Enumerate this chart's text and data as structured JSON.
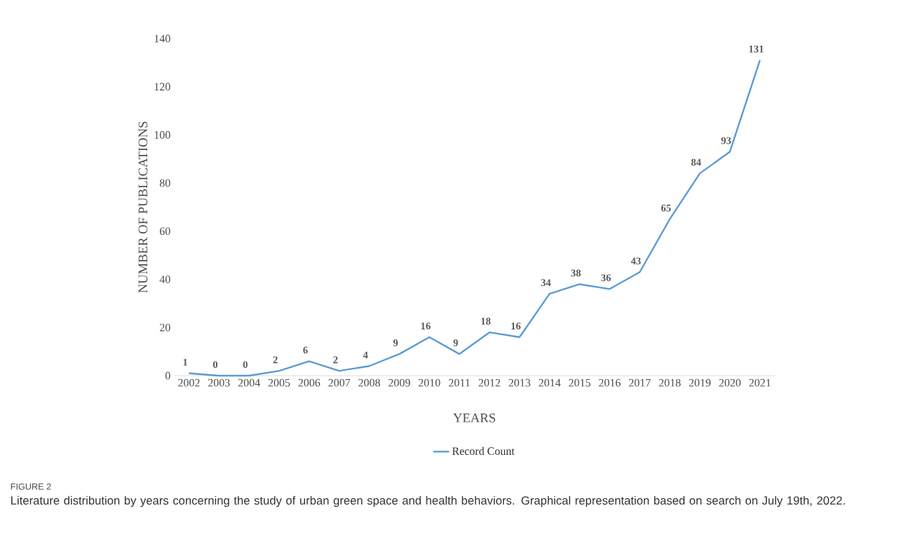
{
  "chart_data": {
    "type": "line",
    "xlabel": "YEARS",
    "ylabel": "NUMBER OF PUBLICATIONS",
    "categories": [
      "2002",
      "2003",
      "2004",
      "2005",
      "2006",
      "2007",
      "2008",
      "2009",
      "2010",
      "2011",
      "2012",
      "2013",
      "2014",
      "2015",
      "2016",
      "2017",
      "2018",
      "2019",
      "2020",
      "2021"
    ],
    "series": [
      {
        "name": "Record Count",
        "color": "#5b9bd5",
        "values": [
          1,
          0,
          0,
          2,
          6,
          2,
          4,
          9,
          16,
          9,
          18,
          16,
          34,
          38,
          36,
          43,
          65,
          84,
          93,
          131
        ]
      }
    ],
    "ylim": [
      0,
      140
    ],
    "yticks": [
      0,
      20,
      40,
      60,
      80,
      100,
      120,
      140
    ],
    "data_labels": true,
    "legend": "bottom",
    "grid": false,
    "marker": "none",
    "line_style": "solid",
    "annotations": [
      "FIGURE 2",
      "Literature distribution by years concerning the study of urban green space and health behaviors. Graphical representation based on search on July 19th, 2022."
    ]
  }
}
